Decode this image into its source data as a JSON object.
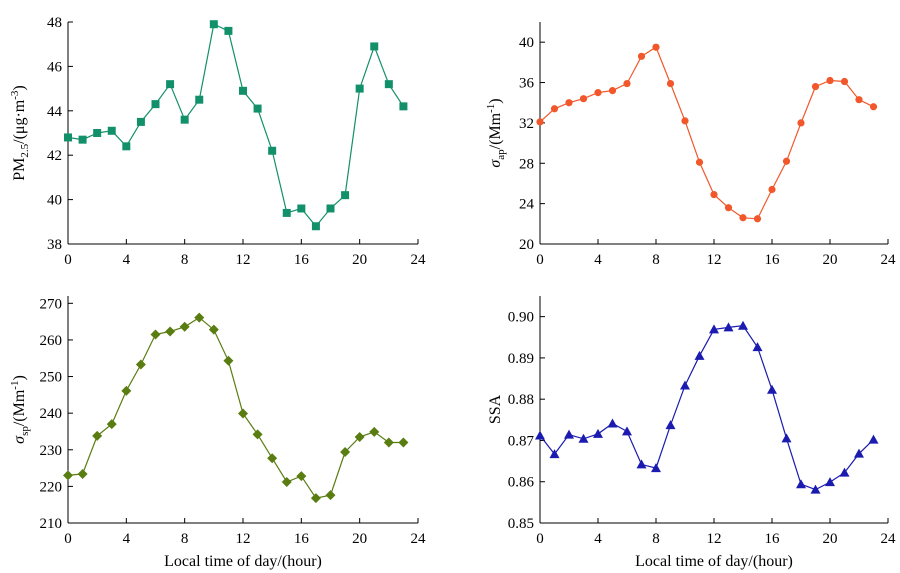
{
  "chart_data": [
    {
      "type": "line",
      "ylabel": "PM2.5/(μg·m-3)",
      "ylabel_parts": [
        {
          "text": "PM",
          "style": "normal"
        },
        {
          "text": "2.5",
          "style": "sub"
        },
        {
          "text": "/(μg·m",
          "style": "normal"
        },
        {
          "text": "-3",
          "style": "sup"
        },
        {
          "text": ")",
          "style": "normal"
        }
      ],
      "xlabel": "",
      "xlim": [
        0,
        24
      ],
      "ylim": [
        38,
        48
      ],
      "xticks": [
        0,
        4,
        8,
        12,
        16,
        20,
        24
      ],
      "yticks": [
        38,
        40,
        42,
        44,
        46,
        48
      ],
      "ytick_decimals": 0,
      "color": "#12906a",
      "marker": "square",
      "x": [
        0,
        1,
        2,
        3,
        4,
        5,
        6,
        7,
        8,
        9,
        10,
        11,
        12,
        13,
        14,
        15,
        16,
        17,
        18,
        19,
        20,
        21,
        22,
        23
      ],
      "values": [
        42.8,
        42.7,
        43.0,
        43.1,
        42.4,
        43.5,
        44.3,
        45.2,
        43.6,
        44.5,
        47.9,
        47.6,
        44.9,
        44.1,
        42.2,
        39.4,
        39.6,
        38.8,
        39.6,
        40.2,
        45.0,
        46.9,
        45.2,
        44.2
      ]
    },
    {
      "type": "line",
      "ylabel": "σap/(Mm-1)",
      "ylabel_parts": [
        {
          "text": "σ",
          "style": "italic"
        },
        {
          "text": "ap",
          "style": "sub"
        },
        {
          "text": "/(Mm",
          "style": "normal"
        },
        {
          "text": "-1",
          "style": "sup"
        },
        {
          "text": ")",
          "style": "normal"
        }
      ],
      "xlabel": "",
      "xlim": [
        0,
        24
      ],
      "ylim": [
        20,
        42
      ],
      "xticks": [
        0,
        4,
        8,
        12,
        16,
        20,
        24
      ],
      "yticks": [
        20,
        24,
        28,
        32,
        36,
        40
      ],
      "ytick_decimals": 0,
      "color": "#f2572b",
      "marker": "circle",
      "x": [
        0,
        1,
        2,
        3,
        4,
        5,
        6,
        7,
        8,
        9,
        10,
        11,
        12,
        13,
        14,
        15,
        16,
        17,
        18,
        19,
        20,
        21,
        22,
        23
      ],
      "values": [
        32.1,
        33.4,
        34.0,
        34.4,
        35.0,
        35.2,
        35.9,
        38.6,
        39.5,
        35.9,
        32.2,
        28.1,
        24.9,
        23.6,
        22.6,
        22.5,
        25.4,
        28.2,
        32.0,
        35.6,
        36.2,
        36.1,
        34.3,
        33.6
      ]
    },
    {
      "type": "line",
      "ylabel": "σsp/(Mm-1)",
      "ylabel_parts": [
        {
          "text": "σ",
          "style": "italic"
        },
        {
          "text": "sp",
          "style": "sub"
        },
        {
          "text": "/(Mm",
          "style": "normal"
        },
        {
          "text": "-1",
          "style": "sup"
        },
        {
          "text": ")",
          "style": "normal"
        }
      ],
      "xlabel": "Local time of day/(hour)",
      "xlim": [
        0,
        24
      ],
      "ylim": [
        210,
        272
      ],
      "xticks": [
        0,
        4,
        8,
        12,
        16,
        20,
        24
      ],
      "yticks": [
        210,
        220,
        230,
        240,
        250,
        260,
        270
      ],
      "ytick_decimals": 0,
      "color": "#5a7d12",
      "marker": "diamond",
      "x": [
        0,
        1,
        2,
        3,
        4,
        5,
        6,
        7,
        8,
        9,
        10,
        11,
        12,
        13,
        14,
        15,
        16,
        17,
        18,
        19,
        20,
        21,
        22,
        23
      ],
      "values": [
        223.0,
        223.4,
        233.8,
        237.0,
        246.1,
        253.3,
        261.5,
        262.3,
        263.6,
        266.1,
        262.8,
        254.3,
        239.9,
        234.2,
        227.7,
        221.2,
        222.8,
        216.8,
        217.6,
        229.4,
        233.5,
        234.9,
        232.0,
        232.0
      ]
    },
    {
      "type": "line",
      "ylabel": "SSA",
      "ylabel_parts": [
        {
          "text": "SSA",
          "style": "normal"
        }
      ],
      "xlabel": "Local time of day/(hour)",
      "xlim": [
        0,
        24
      ],
      "ylim": [
        0.85,
        0.905
      ],
      "xticks": [
        0,
        4,
        8,
        12,
        16,
        20,
        24
      ],
      "yticks": [
        0.85,
        0.86,
        0.87,
        0.88,
        0.89,
        0.9
      ],
      "ytick_decimals": 2,
      "color": "#1b1bb0",
      "marker": "triangle",
      "x": [
        0,
        1,
        2,
        3,
        4,
        5,
        6,
        7,
        8,
        9,
        10,
        11,
        12,
        13,
        14,
        15,
        16,
        17,
        18,
        19,
        20,
        21,
        22,
        23
      ],
      "values": [
        0.8712,
        0.8667,
        0.8714,
        0.8704,
        0.8716,
        0.8741,
        0.8722,
        0.8642,
        0.8633,
        0.8737,
        0.8833,
        0.8905,
        0.8969,
        0.8974,
        0.8978,
        0.8926,
        0.8823,
        0.8705,
        0.8594,
        0.8581,
        0.8599,
        0.8622,
        0.8668,
        0.8702
      ]
    }
  ]
}
